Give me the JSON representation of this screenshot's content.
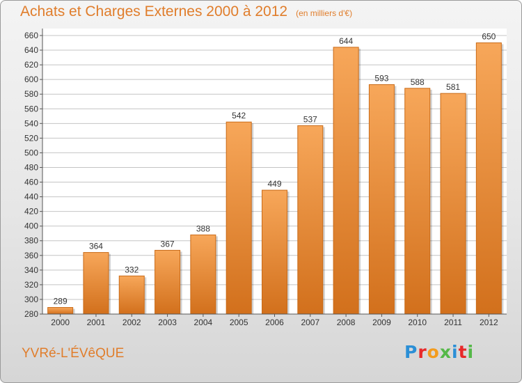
{
  "title": "Achats et Charges Externes 2000 à 2012",
  "unit": "(en milliers d'€)",
  "town": "YVRé-L'ÉVêQUE",
  "logo": {
    "letters": [
      "P",
      "r",
      "o",
      "x",
      "i",
      "t",
      "i"
    ],
    "colors": [
      "#2b8fd6",
      "#e8292a",
      "#f39c1e",
      "#55b848",
      "#2b8fd6",
      "#e8292a",
      "#55b848"
    ]
  },
  "colors": {
    "accent": "#e07d2b",
    "bar_top": "#f7a75a",
    "bar_bottom": "#d2701c",
    "grid": "#c4c4c4"
  },
  "chart_data": {
    "type": "bar",
    "categories": [
      "2000",
      "2001",
      "2002",
      "2003",
      "2004",
      "2005",
      "2006",
      "2007",
      "2008",
      "2009",
      "2010",
      "2011",
      "2012"
    ],
    "values": [
      289,
      364,
      332,
      367,
      388,
      542,
      449,
      537,
      644,
      593,
      588,
      581,
      650
    ],
    "ylim": [
      280,
      660
    ],
    "yticks": [
      280,
      300,
      320,
      340,
      360,
      380,
      400,
      420,
      440,
      460,
      480,
      500,
      520,
      540,
      560,
      580,
      600,
      620,
      640,
      660
    ],
    "title": "Achats et Charges Externes 2000 à 2012",
    "xlabel": "",
    "ylabel": "",
    "grid": true,
    "data_labels": true
  }
}
